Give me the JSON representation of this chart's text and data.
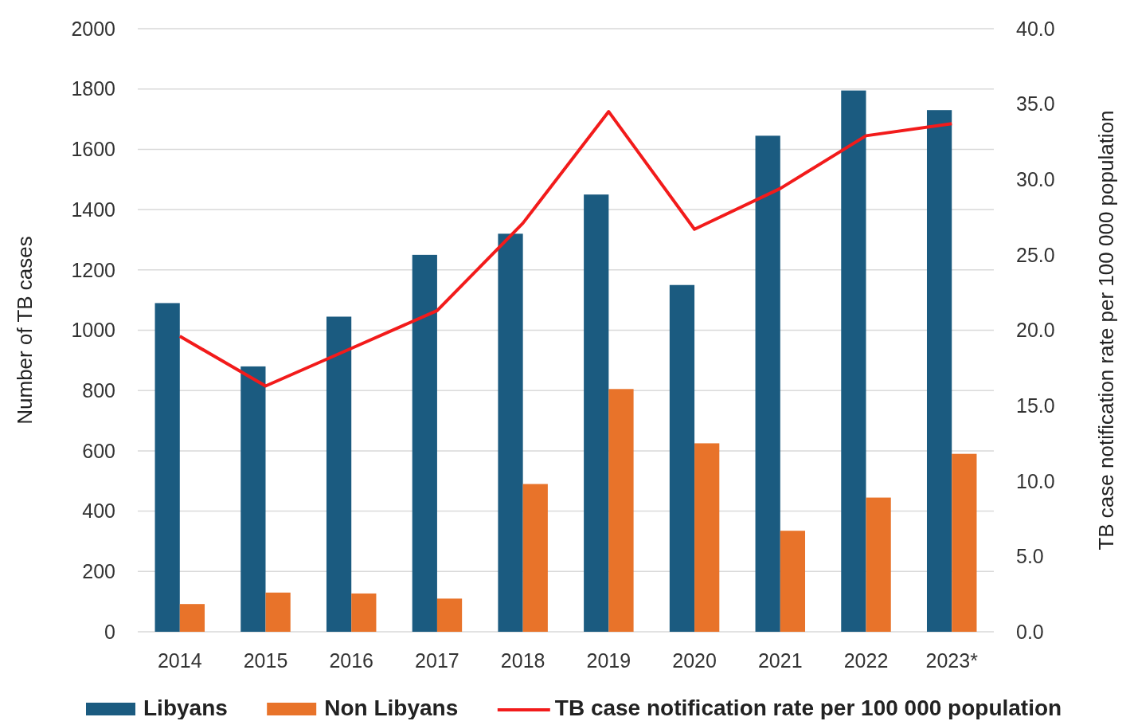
{
  "chart_data": {
    "type": "bar",
    "categories": [
      "2014",
      "2015",
      "2016",
      "2017",
      "2018",
      "2019",
      "2020",
      "2021",
      "2022",
      "2023*"
    ],
    "series": [
      {
        "name": "Libyans",
        "color": "#1b5b80",
        "values": [
          1090,
          880,
          1045,
          1250,
          1320,
          1450,
          1150,
          1645,
          1795,
          1730
        ]
      },
      {
        "name": "Non Libyans",
        "color": "#e8732a",
        "values": [
          92,
          130,
          127,
          110,
          490,
          805,
          625,
          335,
          445,
          590
        ]
      },
      {
        "name": "TB case notification rate per 100 000 population",
        "type": "line",
        "axis": "y2",
        "color": "#f21b1b",
        "values": [
          19.6,
          16.3,
          18.8,
          21.3,
          27.1,
          34.5,
          26.7,
          29.4,
          32.9,
          33.7
        ]
      }
    ],
    "ylabel": "Number of TB cases",
    "y2label": "TB case notification rate per 100 000 population",
    "ylim": [
      0,
      2000
    ],
    "yticks": [
      0,
      200,
      400,
      600,
      800,
      1000,
      1200,
      1400,
      1600,
      1800,
      2000
    ],
    "y2lim": [
      0,
      40
    ],
    "y2ticks": [
      {
        "value": 0,
        "label": "0.0"
      },
      {
        "value": 5,
        "label": "5.0"
      },
      {
        "value": 10,
        "label": "10.0"
      },
      {
        "value": 15,
        "label": "15.0"
      },
      {
        "value": 20,
        "label": "20.0"
      },
      {
        "value": 25,
        "label": "25.0"
      },
      {
        "value": 30,
        "label": "30.0"
      },
      {
        "value": 35,
        "label": "35.0"
      },
      {
        "value": 40,
        "label": "40.0"
      }
    ],
    "grid": "y",
    "legend": "bottom",
    "marker": "none",
    "line_style": "solid"
  }
}
